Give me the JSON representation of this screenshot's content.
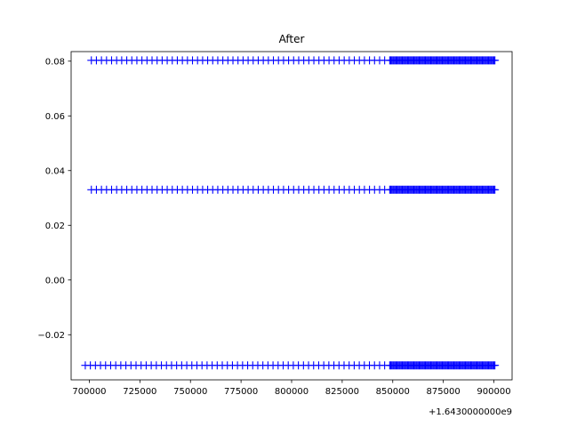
{
  "chart_data": {
    "type": "scatter",
    "title": "After",
    "xlabel": "",
    "ylabel": "",
    "x_offset_label": "+1.6430000000e9",
    "xlim": [
      1643691000,
      1643909000
    ],
    "ylim": [
      -0.0365,
      0.0835
    ],
    "x_ticks": [
      1643700000,
      1643725000,
      1643750000,
      1643775000,
      1643800000,
      1643825000,
      1643850000,
      1643875000,
      1643900000
    ],
    "x_tick_labels": [
      "700000",
      "725000",
      "750000",
      "775000",
      "800000",
      "825000",
      "850000",
      "875000",
      "900000"
    ],
    "y_ticks": [
      -0.02,
      0.0,
      0.02,
      0.04,
      0.06,
      0.08
    ],
    "y_tick_labels": [
      "−0.02",
      "0.00",
      "0.02",
      "0.04",
      "0.06",
      "0.08"
    ],
    "grid": false,
    "marker": "+",
    "color": "#0000ff",
    "series": [
      {
        "y": 0.0803,
        "segments": [
          {
            "x_start": 1643701000,
            "x_end": 1643848500,
            "count": 60
          },
          {
            "x_start": 1643849000,
            "x_end": 1643900500,
            "count": 100
          }
        ]
      },
      {
        "y": 0.033,
        "segments": [
          {
            "x_start": 1643701000,
            "x_end": 1643848500,
            "count": 60
          },
          {
            "x_start": 1643849000,
            "x_end": 1643900500,
            "count": 100
          }
        ]
      },
      {
        "y": -0.0312,
        "segments": [
          {
            "x_start": 1643698000,
            "x_end": 1643848500,
            "count": 61
          },
          {
            "x_start": 1643849000,
            "x_end": 1643900500,
            "count": 100
          }
        ]
      }
    ]
  }
}
